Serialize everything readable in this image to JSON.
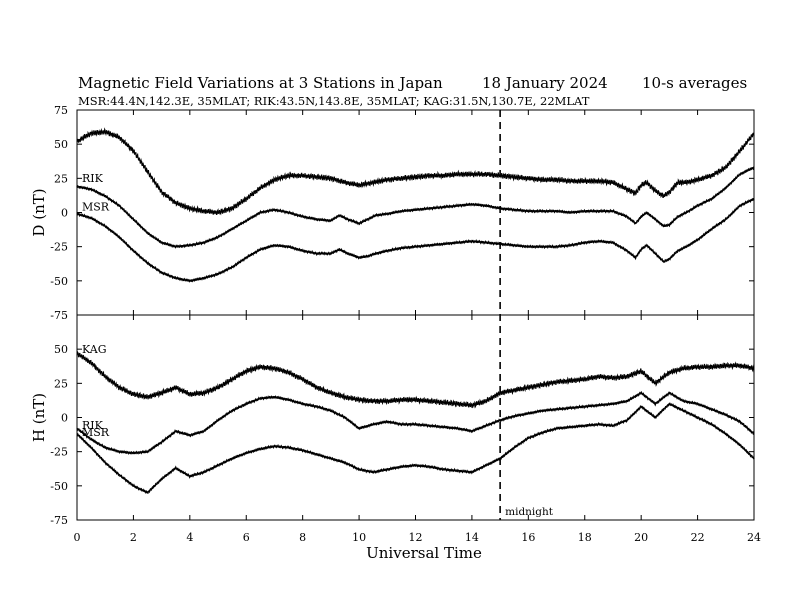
{
  "chart_data": {
    "type": "line",
    "title": "Magnetic Field Variations at 3 Stations in Japan",
    "date": "18 January 2024",
    "averaging": "10-s averages",
    "subtitle": "MSR:44.4N,142.3E, 35MLAT;  RIK:43.5N,143.8E, 35MLAT;  KAG:31.5N,130.7E, 22MLAT",
    "xlabel": "Universal Time",
    "xlim": [
      0,
      24
    ],
    "xticks": [
      0,
      2,
      4,
      6,
      8,
      10,
      12,
      14,
      16,
      18,
      20,
      22,
      24
    ],
    "marker": {
      "x": 15,
      "label": "midnight"
    },
    "panels": [
      {
        "ylabel": "D (nT)",
        "ylim": [
          -75,
          75
        ],
        "yticks": [
          75,
          50,
          25,
          0,
          -25,
          -50,
          -75
        ],
        "series": [
          {
            "name": "",
            "label_hidden": true,
            "noise": 2.2,
            "x": [
              0,
              0.5,
              1,
              1.5,
              2,
              2.5,
              3,
              3.5,
              4,
              4.5,
              5,
              5.5,
              6,
              6.5,
              7,
              7.5,
              8,
              8.5,
              9,
              9.5,
              10,
              10.5,
              11,
              11.5,
              12,
              12.5,
              13,
              13.5,
              14,
              14.5,
              15,
              15.5,
              16,
              16.5,
              17,
              17.5,
              18,
              18.5,
              19,
              19.5,
              19.8,
              20,
              20.2,
              20.5,
              20.8,
              21,
              21.3,
              21.6,
              22,
              22.5,
              23,
              23.5,
              24
            ],
            "values": [
              52,
              58,
              59,
              55,
              45,
              30,
              15,
              7,
              3,
              1,
              0,
              3,
              10,
              18,
              24,
              27,
              27,
              26,
              25,
              22,
              20,
              22,
              24,
              25,
              26,
              27,
              27,
              28,
              28,
              28,
              27,
              26,
              25,
              24,
              24,
              23,
              23,
              23,
              22,
              17,
              14,
              20,
              22,
              16,
              12,
              15,
              22,
              22,
              24,
              27,
              33,
              45,
              58
            ]
          },
          {
            "name": "RIK",
            "noise": 0.6,
            "x": [
              0,
              0.5,
              1,
              1.5,
              2,
              2.5,
              3,
              3.5,
              4,
              4.5,
              5,
              5.5,
              6,
              6.5,
              7,
              7.5,
              8,
              8.5,
              9,
              9.3,
              9.6,
              10,
              10.3,
              10.6,
              11,
              11.5,
              12,
              12.5,
              13,
              13.5,
              14,
              14.5,
              15,
              15.5,
              16,
              16.5,
              17,
              17.5,
              18,
              18.5,
              19,
              19.5,
              19.8,
              20,
              20.2,
              20.5,
              20.8,
              21,
              21.3,
              21.6,
              22,
              22.5,
              23,
              23.5,
              24
            ],
            "values": [
              19,
              17,
              12,
              5,
              -5,
              -15,
              -22,
              -25,
              -24,
              -22,
              -18,
              -12,
              -6,
              0,
              2,
              0,
              -3,
              -5,
              -6,
              -2,
              -5,
              -8,
              -5,
              -2,
              -1,
              1,
              2,
              3,
              4,
              5,
              6,
              5,
              3,
              2,
              1,
              1,
              1,
              0,
              1,
              1,
              1,
              -3,
              -8,
              -3,
              0,
              -5,
              -10,
              -9,
              -3,
              0,
              5,
              10,
              18,
              28,
              33
            ]
          },
          {
            "name": "MSR",
            "noise": 0.6,
            "x": [
              0,
              0.5,
              1,
              1.5,
              2,
              2.5,
              3,
              3.5,
              4,
              4.5,
              5,
              5.5,
              6,
              6.5,
              7,
              7.5,
              8,
              8.5,
              9,
              9.3,
              9.6,
              10,
              10.3,
              10.6,
              11,
              11.5,
              12,
              12.5,
              13,
              13.5,
              14,
              14.5,
              15,
              15.5,
              16,
              16.5,
              17,
              17.5,
              18,
              18.5,
              19,
              19.5,
              19.8,
              20,
              20.2,
              20.5,
              20.8,
              21,
              21.3,
              21.6,
              22,
              22.5,
              23,
              23.5,
              24
            ],
            "values": [
              -1,
              -4,
              -10,
              -18,
              -28,
              -37,
              -44,
              -48,
              -50,
              -48,
              -45,
              -40,
              -33,
              -27,
              -24,
              -25,
              -28,
              -30,
              -30,
              -27,
              -30,
              -33,
              -32,
              -30,
              -28,
              -26,
              -25,
              -24,
              -23,
              -22,
              -21,
              -22,
              -23,
              -24,
              -25,
              -25,
              -25,
              -24,
              -22,
              -21,
              -22,
              -28,
              -33,
              -27,
              -24,
              -30,
              -36,
              -34,
              -28,
              -25,
              -20,
              -12,
              -5,
              5,
              10
            ]
          }
        ]
      },
      {
        "ylabel": "H (nT)",
        "ylim": [
          -75,
          75
        ],
        "yticks": [
          50,
          25,
          0,
          -25,
          -50,
          -75
        ],
        "series": [
          {
            "name": "KAG",
            "noise": 2.2,
            "x": [
              0,
              0.5,
              1,
              1.5,
              2,
              2.5,
              3,
              3.5,
              4,
              4.5,
              5,
              5.5,
              6,
              6.5,
              7,
              7.5,
              8,
              8.5,
              9,
              9.5,
              10,
              10.5,
              11,
              11.5,
              12,
              12.5,
              13,
              13.5,
              14,
              14.5,
              15,
              15.5,
              16,
              16.5,
              17,
              17.5,
              18,
              18.5,
              19,
              19.5,
              20,
              20.5,
              21,
              21.5,
              22,
              22.5,
              23,
              23.5,
              24
            ],
            "values": [
              47,
              40,
              30,
              22,
              17,
              15,
              18,
              22,
              17,
              18,
              22,
              28,
              34,
              37,
              36,
              33,
              28,
              22,
              18,
              15,
              13,
              12,
              12,
              13,
              13,
              12,
              11,
              10,
              9,
              12,
              18,
              20,
              22,
              24,
              26,
              27,
              28,
              30,
              29,
              30,
              34,
              25,
              33,
              36,
              37,
              37,
              38,
              38,
              36
            ]
          },
          {
            "name": "RIK",
            "noise": 0.6,
            "x": [
              0,
              0.5,
              1,
              1.5,
              2,
              2.5,
              3,
              3.5,
              4,
              4.5,
              5,
              5.5,
              6,
              6.5,
              7,
              7.5,
              8,
              8.5,
              9,
              9.5,
              10,
              10.5,
              11,
              11.5,
              12,
              12.5,
              13,
              13.5,
              14,
              14.5,
              15,
              15.5,
              16,
              16.5,
              17,
              17.5,
              18,
              18.5,
              19,
              19.5,
              20,
              20.5,
              21,
              21.5,
              22,
              22.5,
              23,
              23.5,
              24
            ],
            "values": [
              -8,
              -16,
              -22,
              -25,
              -26,
              -25,
              -18,
              -10,
              -13,
              -10,
              -2,
              5,
              10,
              14,
              15,
              13,
              10,
              8,
              5,
              0,
              -8,
              -5,
              -3,
              -5,
              -5,
              -6,
              -7,
              -8,
              -10,
              -6,
              -2,
              1,
              3,
              5,
              6,
              7,
              8,
              9,
              10,
              12,
              18,
              10,
              18,
              12,
              10,
              6,
              2,
              -3,
              -12
            ]
          },
          {
            "name": "MSR",
            "noise": 0.6,
            "x": [
              0,
              0.5,
              1,
              1.5,
              2,
              2.5,
              3,
              3.5,
              4,
              4.5,
              5,
              5.5,
              6,
              6.5,
              7,
              7.5,
              8,
              8.5,
              9,
              9.5,
              10,
              10.5,
              11,
              11.5,
              12,
              12.5,
              13,
              13.5,
              14,
              14.5,
              15,
              15.5,
              16,
              16.5,
              17,
              17.5,
              18,
              18.5,
              19,
              19.5,
              20,
              20.5,
              21,
              21.5,
              22,
              22.5,
              23,
              23.5,
              24
            ],
            "values": [
              -12,
              -22,
              -33,
              -42,
              -50,
              -55,
              -45,
              -37,
              -43,
              -40,
              -35,
              -30,
              -26,
              -23,
              -21,
              -22,
              -24,
              -27,
              -30,
              -33,
              -38,
              -40,
              -38,
              -36,
              -35,
              -36,
              -38,
              -39,
              -40,
              -35,
              -30,
              -22,
              -15,
              -11,
              -8,
              -7,
              -6,
              -5,
              -6,
              -2,
              8,
              0,
              10,
              5,
              0,
              -5,
              -12,
              -20,
              -30
            ]
          }
        ]
      }
    ]
  }
}
